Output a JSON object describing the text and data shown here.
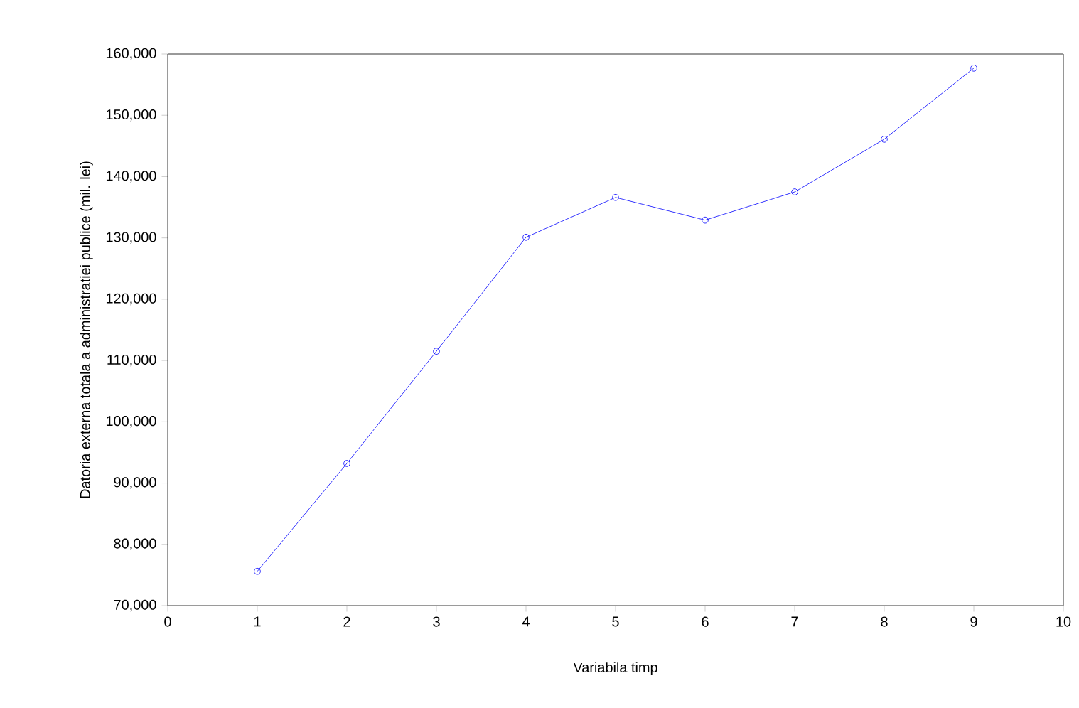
{
  "chart_data": {
    "type": "line",
    "xlabel": "Variabila timp",
    "ylabel": "Datoria  externa  totala  a  administratiei  publice  (mil.  lei)",
    "x": [
      1,
      2,
      3,
      4,
      5,
      6,
      7,
      8,
      9
    ],
    "series": [
      {
        "color": "#0000ff",
        "values": [
          75600,
          93200,
          111500,
          130100,
          136600,
          132900,
          137500,
          146100,
          157700
        ]
      }
    ],
    "xlim": [
      0,
      10
    ],
    "xticks": [
      0,
      1,
      2,
      3,
      4,
      5,
      6,
      7,
      8,
      9,
      10
    ],
    "ylim": [
      70000,
      160000
    ],
    "yticks": [
      {
        "value": 70000,
        "label": "70,000"
      },
      {
        "value": 80000,
        "label": "80,000"
      },
      {
        "value": 90000,
        "label": "90,000"
      },
      {
        "value": 100000,
        "label": "100,000"
      },
      {
        "value": 110000,
        "label": "110,000"
      },
      {
        "value": 120000,
        "label": "120,000"
      },
      {
        "value": 130000,
        "label": "130,000"
      },
      {
        "value": 140000,
        "label": "140,000"
      },
      {
        "value": 150000,
        "label": "150,000"
      },
      {
        "value": 160000,
        "label": "160,000"
      }
    ],
    "marker": "circle",
    "line_style": "solid",
    "grid": false
  }
}
